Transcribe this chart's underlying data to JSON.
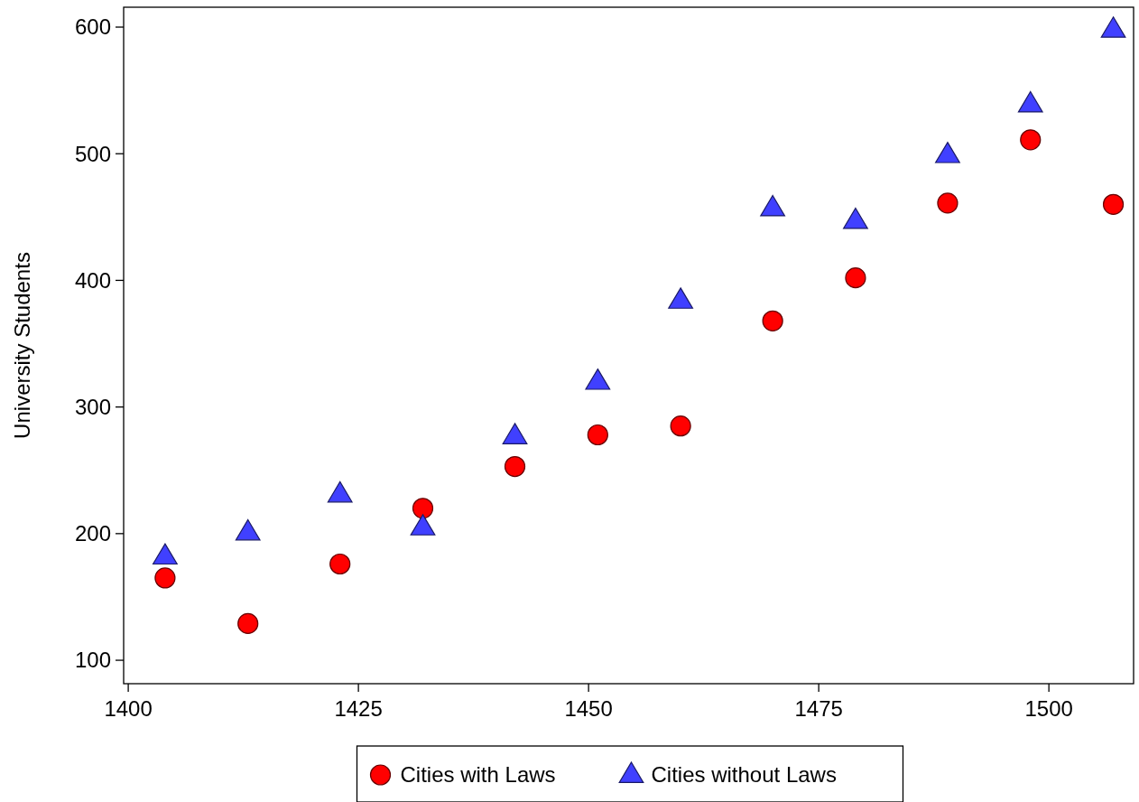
{
  "chart_data": {
    "type": "scatter",
    "ylabel": "University Students",
    "x": [
      1404,
      1413,
      1423,
      1432,
      1442,
      1451,
      1460,
      1470,
      1479,
      1489,
      1498,
      1507
    ],
    "series": [
      {
        "name": "Cities with Laws",
        "color": "#ff0000",
        "marker": "circle",
        "values": [
          165,
          129,
          176,
          220,
          253,
          278,
          285,
          368,
          402,
          461,
          511,
          460
        ]
      },
      {
        "name": "Cities without Laws",
        "color": "#4040ff",
        "marker": "triangle",
        "values": [
          182,
          201,
          231,
          205,
          277,
          320,
          384,
          457,
          447,
          499,
          539,
          598
        ]
      }
    ],
    "xlim": [
      1399.5,
      1509.2
    ],
    "ylim": [
      81.5,
      615.7
    ],
    "xticks": [
      1400,
      1425,
      1450,
      1475,
      1500
    ],
    "yticks": [
      100,
      200,
      300,
      400,
      500,
      600
    ],
    "grid": false,
    "legend": "bottom"
  }
}
